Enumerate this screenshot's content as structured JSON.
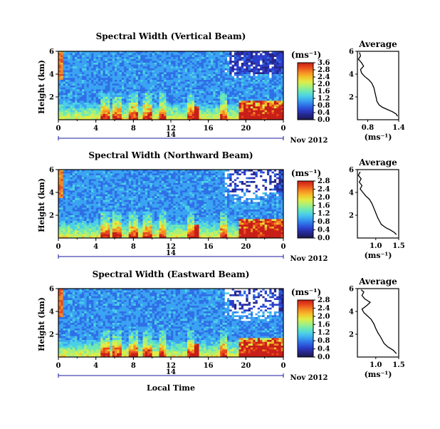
{
  "colors": {
    "scale": [
      "#1a1a4d",
      "#26268c",
      "#2b3fcc",
      "#2e6fe6",
      "#3aa3f2",
      "#4cd0e6",
      "#6ee8b4",
      "#a8f07a",
      "#e0ec46",
      "#f5c02a",
      "#f48a22",
      "#e84a1c",
      "#c81e18"
    ],
    "line": "#000000",
    "date_line": "#1a1aa0"
  },
  "shared": {
    "date_label": "Nov 2012",
    "x_label": "Local Time",
    "units_label": "(ms⁻¹)",
    "colorbar_units": "(ms⁻¹)",
    "average_title": "Average",
    "y_label": "Height (km)"
  },
  "chart_data": [
    {
      "type": "heatmap",
      "title": "Spectral Width (Vertical Beam)",
      "ylabel": "Height (km)",
      "x_ticks": [
        "0",
        "4",
        "8",
        "12",
        "16",
        "20",
        "0"
      ],
      "x_range": [
        0,
        24
      ],
      "day_marker": "14",
      "y_ticks": [
        "6",
        "4",
        "2"
      ],
      "y_range": [
        0,
        6
      ],
      "colorbar_ticks": [
        "0.0",
        "0.4",
        "0.8",
        "1.2",
        "1.6",
        "2.0",
        "2.4",
        "2.8",
        "3.6"
      ],
      "colorbar_range": [
        0,
        3.6
      ],
      "average": {
        "type": "line",
        "title": "Average",
        "xlabel": "(ms⁻¹)",
        "x_ticks": [
          "0.8",
          "1.4"
        ],
        "x_range": [
          0.6,
          1.4
        ],
        "y_ticks": [
          "6",
          "4",
          "2"
        ],
        "y_range": [
          0,
          6
        ],
        "profile": [
          [
            1.38,
            0.3
          ],
          [
            1.35,
            0.5
          ],
          [
            1.28,
            0.7
          ],
          [
            1.18,
            0.9
          ],
          [
            1.08,
            1.1
          ],
          [
            1.02,
            1.3
          ],
          [
            0.98,
            1.6
          ],
          [
            0.96,
            2.0
          ],
          [
            0.94,
            2.4
          ],
          [
            0.92,
            2.8
          ],
          [
            0.88,
            3.2
          ],
          [
            0.82,
            3.5
          ],
          [
            0.74,
            3.8
          ],
          [
            0.68,
            4.1
          ],
          [
            0.66,
            4.4
          ],
          [
            0.72,
            4.7
          ],
          [
            0.68,
            5.0
          ],
          [
            0.62,
            5.3
          ],
          [
            0.66,
            5.6
          ],
          [
            0.64,
            5.9
          ]
        ]
      }
    },
    {
      "type": "heatmap",
      "title": "Spectral Width (Northward Beam)",
      "ylabel": "Height (km)",
      "x_ticks": [
        "0",
        "4",
        "8",
        "12",
        "16",
        "20",
        "0"
      ],
      "x_range": [
        0,
        24
      ],
      "day_marker": "14",
      "y_ticks": [
        "6",
        "4",
        "2"
      ],
      "y_range": [
        0,
        6
      ],
      "colorbar_ticks": [
        "0.0",
        "0.4",
        "0.8",
        "1.2",
        "1.6",
        "2.0",
        "2.4",
        "2.8"
      ],
      "colorbar_range": [
        0,
        2.8
      ],
      "average": {
        "type": "line",
        "title": "Average",
        "xlabel": "(ms⁻¹)",
        "x_ticks": [
          "1.0",
          "1.5"
        ],
        "x_range": [
          0.6,
          1.5
        ],
        "y_ticks": [
          "6",
          "4",
          "2"
        ],
        "y_range": [
          0,
          6
        ],
        "profile": [
          [
            1.45,
            0.3
          ],
          [
            1.4,
            0.5
          ],
          [
            1.32,
            0.7
          ],
          [
            1.22,
            0.9
          ],
          [
            1.12,
            1.2
          ],
          [
            1.08,
            1.5
          ],
          [
            1.04,
            1.8
          ],
          [
            1.0,
            2.2
          ],
          [
            0.96,
            2.6
          ],
          [
            0.92,
            3.0
          ],
          [
            0.86,
            3.4
          ],
          [
            0.78,
            3.7
          ],
          [
            0.72,
            4.0
          ],
          [
            0.66,
            4.3
          ],
          [
            0.7,
            4.6
          ],
          [
            0.64,
            4.9
          ],
          [
            0.68,
            5.2
          ],
          [
            0.62,
            5.5
          ],
          [
            0.66,
            5.8
          ]
        ]
      }
    },
    {
      "type": "heatmap",
      "title": "Spectral Width (Eastward Beam)",
      "ylabel": "Height (km)",
      "x_ticks": [
        "0",
        "4",
        "8",
        "12",
        "16",
        "20",
        "0"
      ],
      "x_range": [
        0,
        24
      ],
      "day_marker": "14",
      "y_ticks": [
        "6",
        "4",
        "2"
      ],
      "y_range": [
        0,
        6
      ],
      "colorbar_ticks": [
        "0.0",
        "0.4",
        "0.8",
        "1.2",
        "1.6",
        "2.0",
        "2.4",
        "2.8"
      ],
      "colorbar_range": [
        0,
        2.8
      ],
      "average": {
        "type": "line",
        "title": "Average",
        "xlabel": "(ms⁻¹)",
        "x_ticks": [
          "1.0",
          "1.5"
        ],
        "x_range": [
          0.6,
          1.5
        ],
        "y_ticks": [
          "6",
          "4",
          "2"
        ],
        "y_range": [
          0,
          6
        ],
        "profile": [
          [
            1.45,
            0.3
          ],
          [
            1.38,
            0.6
          ],
          [
            1.26,
            0.9
          ],
          [
            1.18,
            1.2
          ],
          [
            1.14,
            1.5
          ],
          [
            1.1,
            1.8
          ],
          [
            1.05,
            2.1
          ],
          [
            1.0,
            2.5
          ],
          [
            0.96,
            2.9
          ],
          [
            0.9,
            3.3
          ],
          [
            0.82,
            3.6
          ],
          [
            0.74,
            3.9
          ],
          [
            0.7,
            4.2
          ],
          [
            0.8,
            4.5
          ],
          [
            0.88,
            4.8
          ],
          [
            0.76,
            5.1
          ],
          [
            0.7,
            5.4
          ],
          [
            0.74,
            5.7
          ],
          [
            0.68,
            5.9
          ]
        ]
      }
    }
  ]
}
